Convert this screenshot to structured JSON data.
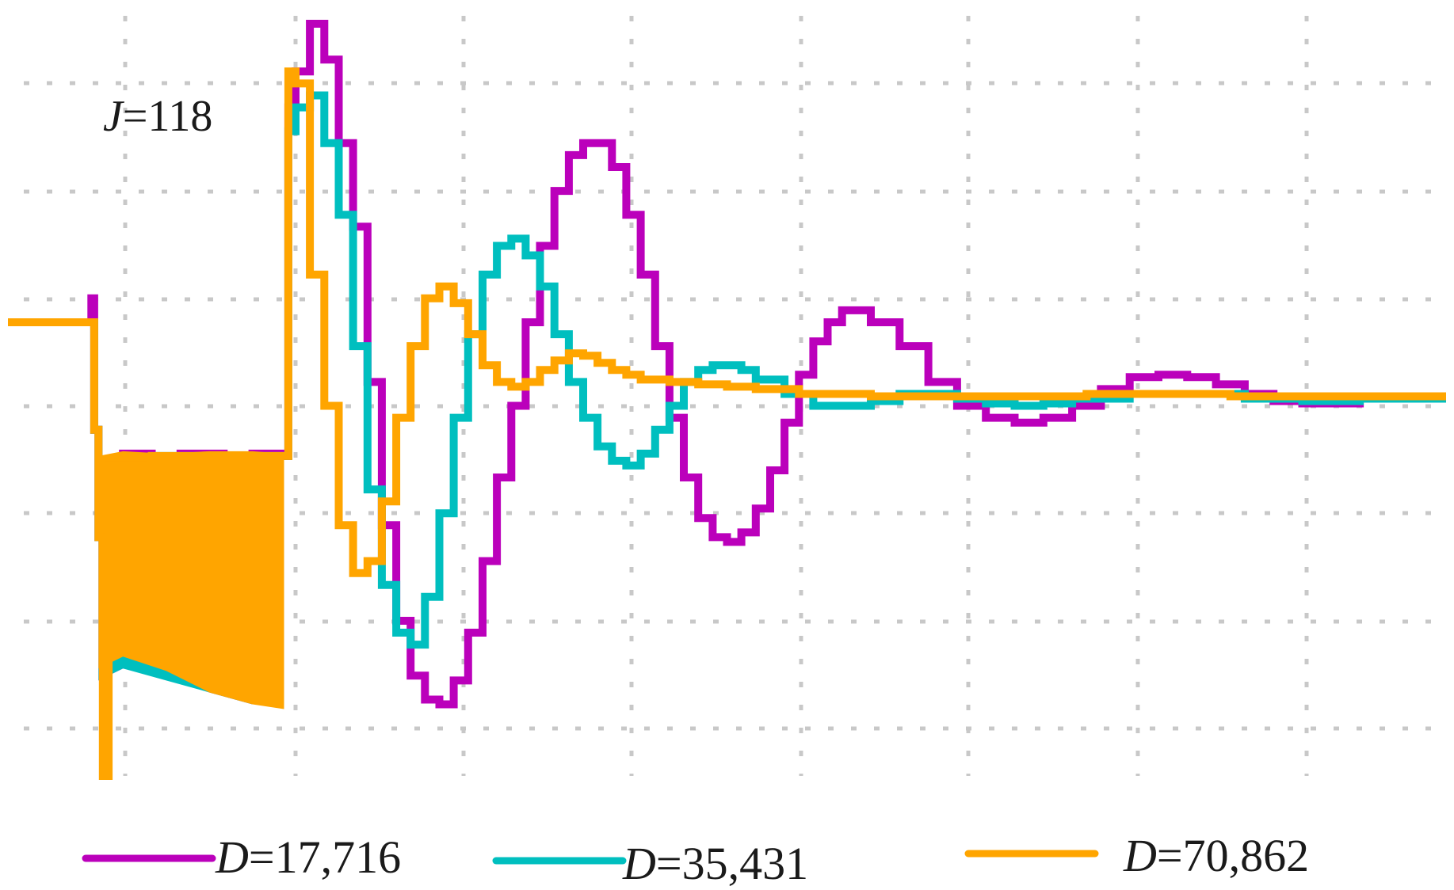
{
  "chart_data": {
    "type": "line",
    "title": "",
    "xlabel": "",
    "ylabel": "",
    "annotation": {
      "var": "J",
      "rest": "=118"
    },
    "xlim": [
      0,
      100
    ],
    "ylim": [
      -1.6,
      1.55
    ],
    "grid": true,
    "legend_position": "bottom",
    "series": [
      {
        "name_var": "D",
        "name_rest": "=17,716",
        "color": "#BB00BB",
        "points": [
          [
            0,
            0.3
          ],
          [
            5.5,
            0.3
          ],
          [
            5.8,
            0.4
          ],
          [
            6,
            -0.15
          ],
          [
            6.3,
            -0.6
          ],
          [
            7,
            -0.3
          ],
          [
            8,
            -0.25
          ],
          [
            10,
            -0.28
          ],
          [
            12,
            -0.25
          ],
          [
            15,
            -0.26
          ],
          [
            17,
            -0.25
          ],
          [
            19.2,
            -0.26
          ],
          [
            19.5,
            1.2
          ],
          [
            20,
            1.35
          ],
          [
            21,
            1.55
          ],
          [
            22,
            1.4
          ],
          [
            23,
            1.05
          ],
          [
            24,
            0.7
          ],
          [
            25,
            0.05
          ],
          [
            26,
            -0.55
          ],
          [
            27,
            -0.95
          ],
          [
            28,
            -1.18
          ],
          [
            29,
            -1.28
          ],
          [
            30,
            -1.3
          ],
          [
            31,
            -1.2
          ],
          [
            32,
            -1.0
          ],
          [
            33,
            -0.7
          ],
          [
            34,
            -0.35
          ],
          [
            35,
            -0.05
          ],
          [
            36,
            0.3
          ],
          [
            37,
            0.62
          ],
          [
            38,
            0.85
          ],
          [
            39,
            1.0
          ],
          [
            40,
            1.05
          ],
          [
            41,
            1.05
          ],
          [
            42,
            0.95
          ],
          [
            43,
            0.75
          ],
          [
            44,
            0.5
          ],
          [
            45,
            0.2
          ],
          [
            46,
            -0.1
          ],
          [
            47,
            -0.35
          ],
          [
            48,
            -0.52
          ],
          [
            49,
            -0.6
          ],
          [
            50,
            -0.62
          ],
          [
            51,
            -0.58
          ],
          [
            52,
            -0.48
          ],
          [
            53,
            -0.32
          ],
          [
            54,
            -0.12
          ],
          [
            55,
            0.08
          ],
          [
            56,
            0.22
          ],
          [
            57,
            0.3
          ],
          [
            58,
            0.35
          ],
          [
            60,
            0.3
          ],
          [
            62,
            0.2
          ],
          [
            64,
            0.05
          ],
          [
            66,
            -0.05
          ],
          [
            68,
            -0.1
          ],
          [
            70,
            -0.12
          ],
          [
            72,
            -0.1
          ],
          [
            74,
            -0.05
          ],
          [
            76,
            0.02
          ],
          [
            78,
            0.07
          ],
          [
            80,
            0.08
          ],
          [
            82,
            0.07
          ],
          [
            84,
            0.04
          ],
          [
            86,
            0.0
          ],
          [
            88,
            -0.03
          ],
          [
            90,
            -0.04
          ],
          [
            92,
            -0.04
          ],
          [
            94,
            -0.02
          ],
          [
            96,
            -0.01
          ],
          [
            100,
            -0.01
          ]
        ],
        "band": [
          [
            6.3,
            -0.28,
            -1.2
          ],
          [
            8,
            -0.25,
            -1.15
          ],
          [
            11,
            -0.26,
            -1.18
          ],
          [
            14,
            -0.25,
            -1.25
          ],
          [
            17,
            -0.25,
            -1.3
          ],
          [
            19.2,
            -0.26,
            -1.3
          ]
        ]
      },
      {
        "name_var": "D",
        "name_rest": "=35,431",
        "color": "#00BFBF",
        "points": [
          [
            0,
            0.3
          ],
          [
            5.5,
            0.3
          ],
          [
            6,
            -0.15
          ],
          [
            6.3,
            -0.6
          ],
          [
            7,
            -0.3
          ],
          [
            10,
            -0.26
          ],
          [
            15,
            -0.26
          ],
          [
            19.2,
            -0.26
          ],
          [
            19.5,
            1.1
          ],
          [
            20,
            1.2
          ],
          [
            21,
            1.25
          ],
          [
            22,
            1.05
          ],
          [
            23,
            0.75
          ],
          [
            24,
            0.2
          ],
          [
            25,
            -0.4
          ],
          [
            26,
            -0.8
          ],
          [
            27,
            -1.0
          ],
          [
            28,
            -1.05
          ],
          [
            29,
            -0.85
          ],
          [
            30,
            -0.5
          ],
          [
            31,
            -0.1
          ],
          [
            32,
            0.25
          ],
          [
            33,
            0.5
          ],
          [
            34,
            0.62
          ],
          [
            35,
            0.65
          ],
          [
            36,
            0.58
          ],
          [
            37,
            0.45
          ],
          [
            38,
            0.25
          ],
          [
            39,
            0.05
          ],
          [
            40,
            -0.1
          ],
          [
            41,
            -0.22
          ],
          [
            42,
            -0.28
          ],
          [
            43,
            -0.3
          ],
          [
            44,
            -0.25
          ],
          [
            45,
            -0.15
          ],
          [
            46,
            -0.05
          ],
          [
            47,
            0.05
          ],
          [
            48,
            0.1
          ],
          [
            49,
            0.12
          ],
          [
            50,
            0.12
          ],
          [
            51,
            0.1
          ],
          [
            52,
            0.06
          ],
          [
            54,
            0.0
          ],
          [
            56,
            -0.05
          ],
          [
            58,
            -0.05
          ],
          [
            60,
            -0.03
          ],
          [
            62,
            0.0
          ],
          [
            64,
            0.0
          ],
          [
            66,
            -0.02
          ],
          [
            68,
            -0.04
          ],
          [
            70,
            -0.05
          ],
          [
            72,
            -0.04
          ],
          [
            74,
            -0.02
          ],
          [
            78,
            0.0
          ],
          [
            82,
            0.0
          ],
          [
            86,
            -0.02
          ],
          [
            90,
            -0.03
          ],
          [
            94,
            -0.02
          ],
          [
            100,
            -0.02
          ]
        ],
        "band": [
          [
            6.3,
            -0.28,
            -1.2
          ],
          [
            8,
            -0.25,
            -1.15
          ],
          [
            11,
            -0.26,
            -1.2
          ],
          [
            14,
            -0.25,
            -1.25
          ],
          [
            17,
            -0.25,
            -1.3
          ],
          [
            19.2,
            -0.26,
            -1.3
          ]
        ]
      },
      {
        "name_var": "D",
        "name_rest": "=70,862",
        "color": "#FFA500",
        "points": [
          [
            0,
            0.3
          ],
          [
            5.5,
            0.3
          ],
          [
            6,
            -0.15
          ],
          [
            6.3,
            -0.6
          ],
          [
            6.6,
            -1.6
          ],
          [
            7,
            -0.3
          ],
          [
            10,
            -0.26
          ],
          [
            15,
            -0.26
          ],
          [
            19.2,
            -0.26
          ],
          [
            19.5,
            1.35
          ],
          [
            20,
            1.3
          ],
          [
            21,
            0.5
          ],
          [
            22,
            -0.05
          ],
          [
            23,
            -0.55
          ],
          [
            24,
            -0.75
          ],
          [
            25,
            -0.7
          ],
          [
            26,
            -0.45
          ],
          [
            27,
            -0.1
          ],
          [
            28,
            0.2
          ],
          [
            29,
            0.4
          ],
          [
            30,
            0.45
          ],
          [
            31,
            0.38
          ],
          [
            32,
            0.25
          ],
          [
            33,
            0.12
          ],
          [
            34,
            0.05
          ],
          [
            35,
            0.03
          ],
          [
            36,
            0.05
          ],
          [
            37,
            0.1
          ],
          [
            38,
            0.14
          ],
          [
            39,
            0.17
          ],
          [
            40,
            0.16
          ],
          [
            41,
            0.13
          ],
          [
            42,
            0.1
          ],
          [
            43,
            0.08
          ],
          [
            44,
            0.06
          ],
          [
            46,
            0.05
          ],
          [
            48,
            0.04
          ],
          [
            50,
            0.03
          ],
          [
            52,
            0.02
          ],
          [
            55,
            0.0
          ],
          [
            60,
            -0.01
          ],
          [
            65,
            -0.01
          ],
          [
            70,
            -0.01
          ],
          [
            75,
            0.0
          ],
          [
            80,
            0.0
          ],
          [
            85,
            -0.01
          ],
          [
            90,
            -0.01
          ],
          [
            95,
            -0.01
          ],
          [
            100,
            -0.01
          ]
        ],
        "band": [
          [
            6.3,
            -0.26,
            -1.15
          ],
          [
            8,
            -0.24,
            -1.1
          ],
          [
            11,
            -0.25,
            -1.16
          ],
          [
            14,
            -0.24,
            -1.25
          ],
          [
            17,
            -0.24,
            -1.3
          ],
          [
            19.2,
            -0.25,
            -1.32
          ]
        ]
      }
    ]
  }
}
